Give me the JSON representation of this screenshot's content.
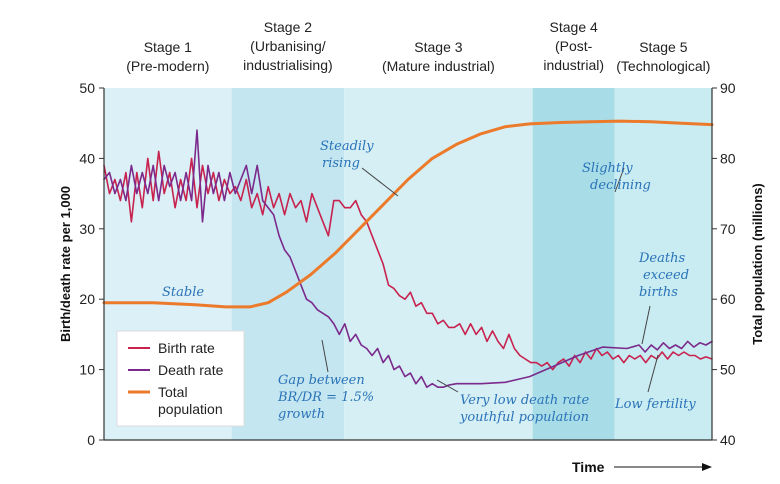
{
  "chart_data": {
    "type": "line",
    "title": "",
    "xlabel": "Time",
    "ylabel_left": "Birth/death rate per 1,000",
    "ylabel_right": "Total population (millions)",
    "ylim_left": [
      0,
      50
    ],
    "ylim_right": [
      40,
      90
    ],
    "yticks_left": [
      "0",
      "10",
      "20",
      "30",
      "40",
      "50"
    ],
    "yticks_right": [
      "40",
      "50",
      "60",
      "70",
      "80",
      "90"
    ],
    "xlim": [
      0,
      100
    ],
    "grid": false,
    "legend_placement": "bottom-left",
    "stages": [
      {
        "line1": "Stage 1",
        "line2": "(Pre-modern)",
        "line3": "",
        "start": 0,
        "end": 21,
        "shade": "#dbf0f7"
      },
      {
        "line1": "Stage 2",
        "line2": "(Urbanising/",
        "line3": "industrialising)",
        "start": 21,
        "end": 39.5,
        "shade": "#c4e6f0"
      },
      {
        "line1": "Stage 3",
        "line2": "(Mature industrial)",
        "line3": "",
        "start": 39.5,
        "end": 70.5,
        "shade": "#d5eff5"
      },
      {
        "line1": "Stage 4",
        "line2": "(Post-",
        "line3": "industrial)",
        "start": 70.5,
        "end": 84,
        "shade": "#a8dde8"
      },
      {
        "line1": "Stage 5",
        "line2": "(Technological)",
        "line3": "",
        "start": 84,
        "end": 100,
        "shade": "#c9ebf2"
      }
    ],
    "series": [
      {
        "name": "Birth rate",
        "color": "#c8234f",
        "axis": "left",
        "points": [
          [
            0,
            39
          ],
          [
            0.9,
            35
          ],
          [
            1.8,
            37
          ],
          [
            2.7,
            34
          ],
          [
            3.6,
            38
          ],
          [
            4.5,
            31
          ],
          [
            5.4,
            38
          ],
          [
            6.3,
            33
          ],
          [
            7.2,
            40
          ],
          [
            8.1,
            34
          ],
          [
            9,
            41
          ],
          [
            9.9,
            35
          ],
          [
            10.8,
            38
          ],
          [
            11.7,
            33
          ],
          [
            12.6,
            37
          ],
          [
            13.5,
            34
          ],
          [
            14.4,
            40
          ],
          [
            15.3,
            33
          ],
          [
            16.2,
            39
          ],
          [
            17.1,
            35
          ],
          [
            18,
            38
          ],
          [
            18.9,
            34
          ],
          [
            19.8,
            37
          ],
          [
            20.7,
            35
          ],
          [
            21.6,
            36
          ],
          [
            22.5,
            34
          ],
          [
            23.4,
            37
          ],
          [
            24.3,
            33
          ],
          [
            25.2,
            35
          ],
          [
            26.1,
            32
          ],
          [
            27,
            36
          ],
          [
            27.9,
            33
          ],
          [
            28.8,
            35
          ],
          [
            29.7,
            32
          ],
          [
            30.6,
            35
          ],
          [
            31.5,
            33
          ],
          [
            32.4,
            34
          ],
          [
            33.3,
            31
          ],
          [
            34.2,
            35
          ],
          [
            35.1,
            33
          ],
          [
            36,
            31
          ],
          [
            36.9,
            29
          ],
          [
            37.8,
            34
          ],
          [
            38.7,
            34
          ],
          [
            39.6,
            33
          ],
          [
            40.5,
            33
          ],
          [
            41.4,
            34
          ],
          [
            42.3,
            32
          ],
          [
            43.2,
            31
          ],
          [
            44.1,
            29
          ],
          [
            45,
            27
          ],
          [
            45.9,
            25
          ],
          [
            46.8,
            22
          ],
          [
            47.7,
            21.5
          ],
          [
            48.6,
            20.5
          ],
          [
            49.5,
            20
          ],
          [
            50.4,
            21
          ],
          [
            51.3,
            19
          ],
          [
            52.2,
            19.5
          ],
          [
            53.1,
            18
          ],
          [
            54,
            18
          ],
          [
            54.9,
            16.5
          ],
          [
            55.8,
            17
          ],
          [
            56.7,
            16
          ],
          [
            57.6,
            16
          ],
          [
            58.5,
            16.5
          ],
          [
            59.4,
            15
          ],
          [
            60.3,
            16.5
          ],
          [
            61.2,
            15
          ],
          [
            62.1,
            16
          ],
          [
            63,
            14
          ],
          [
            63.9,
            15.5
          ],
          [
            64.8,
            14
          ],
          [
            65.7,
            13
          ],
          [
            66.6,
            15
          ],
          [
            67.5,
            13
          ],
          [
            68.4,
            12
          ],
          [
            69.3,
            11.5
          ],
          [
            70.2,
            11
          ],
          [
            71.1,
            11
          ],
          [
            72,
            10.5
          ],
          [
            72.9,
            11
          ],
          [
            73.8,
            10
          ],
          [
            74.7,
            11
          ],
          [
            75.6,
            11.5
          ],
          [
            76.5,
            10.5
          ],
          [
            77.4,
            12
          ],
          [
            78.3,
            11
          ],
          [
            79.2,
            12.5
          ],
          [
            80.1,
            11.5
          ],
          [
            81,
            13
          ],
          [
            81.9,
            12
          ],
          [
            82.8,
            12.5
          ],
          [
            83.7,
            11.5
          ],
          [
            84.6,
            12
          ],
          [
            85.5,
            11
          ],
          [
            86.4,
            12
          ],
          [
            87.3,
            11.5
          ],
          [
            88.2,
            12
          ],
          [
            89.1,
            11
          ],
          [
            90,
            12
          ],
          [
            90.9,
            11.5
          ],
          [
            91.8,
            12.5
          ],
          [
            92.7,
            11.5
          ],
          [
            93.6,
            12.5
          ],
          [
            94.5,
            12
          ],
          [
            95.4,
            12.5
          ],
          [
            96.3,
            12
          ],
          [
            97.2,
            12
          ],
          [
            98.1,
            11.5
          ],
          [
            99,
            11.8
          ],
          [
            100,
            11.5
          ]
        ]
      },
      {
        "name": "Death rate",
        "color": "#7b2a8c",
        "axis": "left",
        "points": [
          [
            0,
            37
          ],
          [
            0.9,
            38
          ],
          [
            1.8,
            35
          ],
          [
            2.7,
            37
          ],
          [
            3.6,
            34
          ],
          [
            4.5,
            39
          ],
          [
            5.4,
            35
          ],
          [
            6.3,
            38
          ],
          [
            7.2,
            35
          ],
          [
            8.1,
            39
          ],
          [
            9,
            34
          ],
          [
            9.9,
            39
          ],
          [
            10.8,
            36
          ],
          [
            11.7,
            38
          ],
          [
            12.6,
            34
          ],
          [
            13.5,
            38
          ],
          [
            14.4,
            34
          ],
          [
            15.3,
            44
          ],
          [
            16.2,
            31
          ],
          [
            17.1,
            39
          ],
          [
            18,
            35
          ],
          [
            18.9,
            38
          ],
          [
            19.8,
            34
          ],
          [
            20.7,
            38
          ],
          [
            21.6,
            35
          ],
          [
            22.5,
            37
          ],
          [
            23.4,
            39
          ],
          [
            24.3,
            35
          ],
          [
            25.2,
            39
          ],
          [
            26.1,
            34
          ],
          [
            27,
            33
          ],
          [
            27.9,
            32
          ],
          [
            28.8,
            29
          ],
          [
            29.7,
            27
          ],
          [
            30.6,
            26
          ],
          [
            31.5,
            24
          ],
          [
            32.4,
            22
          ],
          [
            33.3,
            20
          ],
          [
            34.2,
            19.5
          ],
          [
            35.1,
            18.5
          ],
          [
            36,
            18
          ],
          [
            36.9,
            17.5
          ],
          [
            37.8,
            16.5
          ],
          [
            38.7,
            15
          ],
          [
            39.6,
            16.5
          ],
          [
            40.5,
            14
          ],
          [
            41.4,
            15
          ],
          [
            42.3,
            13.5
          ],
          [
            43.2,
            13
          ],
          [
            44.1,
            12
          ],
          [
            45,
            13
          ],
          [
            45.9,
            11
          ],
          [
            46.8,
            12
          ],
          [
            47.7,
            10
          ],
          [
            48.6,
            10.5
          ],
          [
            49.5,
            9
          ],
          [
            50.4,
            9.5
          ],
          [
            51.3,
            8
          ],
          [
            52.2,
            9
          ],
          [
            53.1,
            7.5
          ],
          [
            54,
            8
          ],
          [
            54.9,
            7.5
          ],
          [
            55.8,
            7.5
          ],
          [
            56.7,
            7.8
          ],
          [
            58,
            8
          ],
          [
            62,
            8
          ],
          [
            66,
            8.2
          ],
          [
            70,
            9
          ],
          [
            74,
            10.5
          ],
          [
            78,
            12
          ],
          [
            82,
            13.2
          ],
          [
            86,
            13
          ],
          [
            88,
            13.5
          ],
          [
            89,
            12.5
          ],
          [
            90,
            13.5
          ],
          [
            91,
            12.8
          ],
          [
            92,
            13.8
          ],
          [
            93,
            13
          ],
          [
            94,
            13.5
          ],
          [
            95,
            13
          ],
          [
            96,
            14
          ],
          [
            97,
            13.2
          ],
          [
            98,
            13.8
          ],
          [
            99,
            13.5
          ],
          [
            100,
            14
          ]
        ]
      },
      {
        "name": "Total population",
        "color": "#ec7a2b",
        "axis": "right",
        "points": [
          [
            0,
            59.5
          ],
          [
            8,
            59.5
          ],
          [
            15,
            59.2
          ],
          [
            20,
            58.9
          ],
          [
            24,
            58.9
          ],
          [
            27,
            59.5
          ],
          [
            30,
            61
          ],
          [
            34,
            63.5
          ],
          [
            38,
            66.5
          ],
          [
            42,
            70
          ],
          [
            46,
            73.5
          ],
          [
            50,
            77
          ],
          [
            54,
            80
          ],
          [
            58,
            82
          ],
          [
            62,
            83.5
          ],
          [
            66,
            84.5
          ],
          [
            70,
            84.9
          ],
          [
            75,
            85.1
          ],
          [
            80,
            85.2
          ],
          [
            85,
            85.3
          ],
          [
            90,
            85.2
          ],
          [
            95,
            85
          ],
          [
            100,
            84.8
          ]
        ]
      }
    ],
    "legend": [
      {
        "label": "Birth rate",
        "color": "#c8234f"
      },
      {
        "label": "Death rate",
        "color": "#7b2a8c"
      },
      {
        "label": "Total",
        "label2": "population",
        "color": "#ec7a2b"
      }
    ],
    "annotations": [
      {
        "key": "steadily",
        "line1": "Steadily",
        "line2": "rising"
      },
      {
        "key": "declining",
        "line1": "Slightly",
        "line2": "declining"
      },
      {
        "key": "stable",
        "line1": "Stable",
        "line2": ""
      },
      {
        "key": "deaths",
        "line1": "Deaths",
        "line2": "exceed",
        "line3": "births"
      },
      {
        "key": "gap",
        "line1": "Gap between",
        "line2": "BR/DR = 1.5%",
        "line3": "growth"
      },
      {
        "key": "lowdeath",
        "line1": "Very low death rate",
        "line2": "youthful population"
      },
      {
        "key": "lowfert",
        "line1": "Low fertility",
        "line2": ""
      }
    ]
  }
}
